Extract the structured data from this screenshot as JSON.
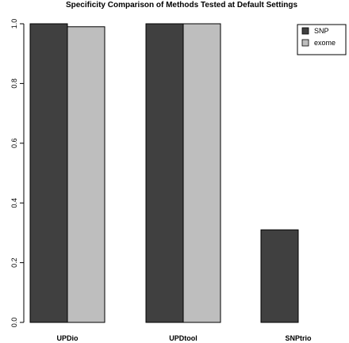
{
  "chart_data": {
    "type": "bar",
    "title": "Specificity Comparison of Methods Tested at Default Settings",
    "xlabel": "",
    "ylabel": "",
    "categories": [
      "UPDio",
      "UPDtool",
      "SNPtrio"
    ],
    "series": [
      {
        "name": "SNP",
        "values": [
          1.0,
          1.0,
          0.31
        ],
        "color": "#404040"
      },
      {
        "name": "exome",
        "values": [
          0.99,
          1.0,
          0.0
        ],
        "color": "#bebebe"
      }
    ],
    "ylim": [
      0,
      1
    ],
    "yticks": [
      "0.0",
      "0.2",
      "0.4",
      "0.6",
      "0.8",
      "1.0"
    ],
    "grid": false,
    "legend_position": "top-right"
  }
}
